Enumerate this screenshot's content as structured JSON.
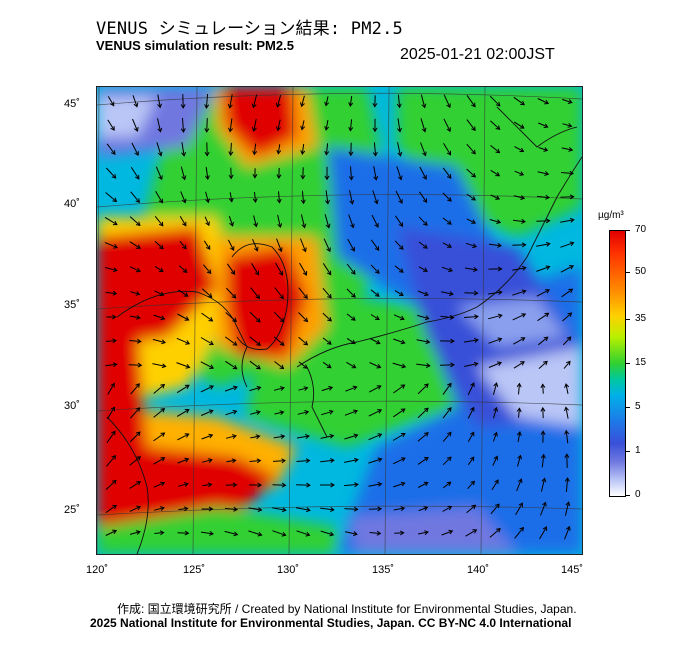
{
  "header": {
    "title_jp": "VENUS シミュレーション結果: PM2.5",
    "title_en": "VENUS simulation result: PM2.5",
    "timestamp": "2025-01-21 02:00JST"
  },
  "map": {
    "lat_labels": [
      "45˚",
      "40˚",
      "35˚",
      "30˚",
      "25˚"
    ],
    "lon_labels": [
      "120˚",
      "125˚",
      "130˚",
      "135˚",
      "140˚",
      "145˚"
    ],
    "variable": "PM2.5",
    "overlay": "wind vectors"
  },
  "colorbar": {
    "unit": "µg/m³",
    "ticks": [
      "70",
      "50",
      "35",
      "15",
      "5",
      "1",
      "0"
    ]
  },
  "footer": {
    "credit": "作成: 国立環境研究所 / Created by National Institute for Environmental Studies, Japan.",
    "copyright": "2025 National Institute for Environmental Studies, Japan. CC BY-NC 4.0 International"
  },
  "palette": {
    "high": "#e00000",
    "mid_high": "#ffd000",
    "mid": "#30d030",
    "mid_low": "#00b0e8",
    "low": "#3850d8",
    "lowest": "#bac6f6"
  }
}
